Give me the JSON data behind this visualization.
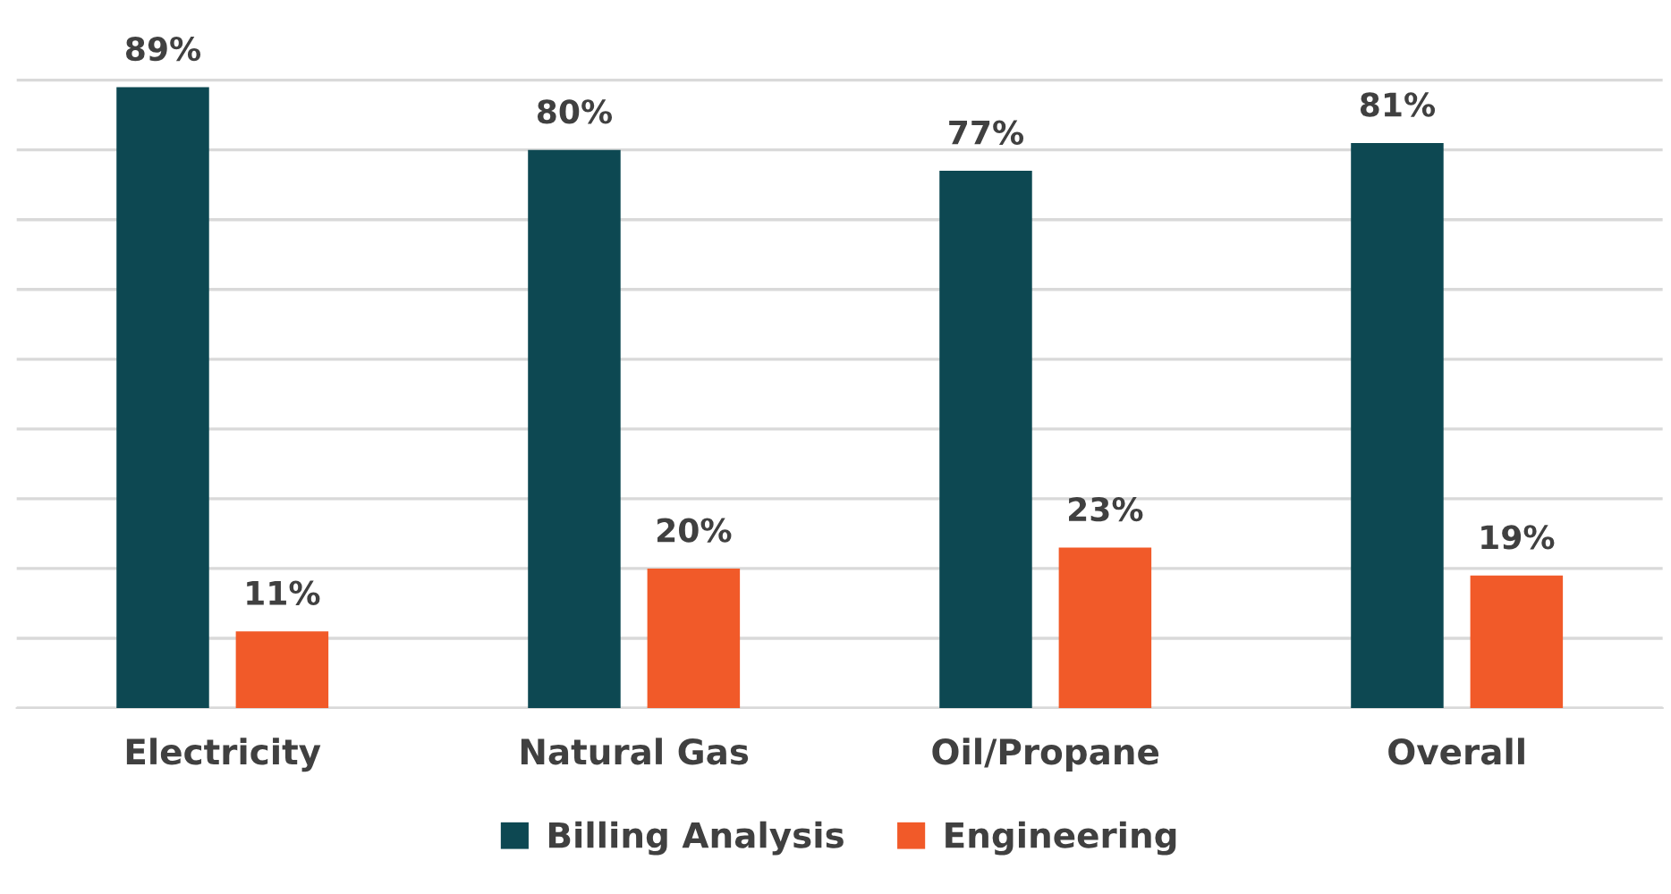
{
  "chart_data": {
    "type": "bar",
    "categories": [
      "Electricity",
      "Natural Gas",
      "Oil/Propane",
      "Overall"
    ],
    "series": [
      {
        "name": "Billing Analysis",
        "color": "#0d4852",
        "values": [
          89,
          80,
          77,
          81
        ],
        "value_labels": [
          "89%",
          "80%",
          "77%",
          "81%"
        ]
      },
      {
        "name": "Engineering",
        "color": "#f15a29",
        "values": [
          11,
          20,
          23,
          19
        ],
        "value_labels": [
          "11%",
          "20%",
          "23%",
          "19%"
        ]
      }
    ],
    "tick_labels": "x",
    "grid": "y",
    "legend": "bottom"
  }
}
